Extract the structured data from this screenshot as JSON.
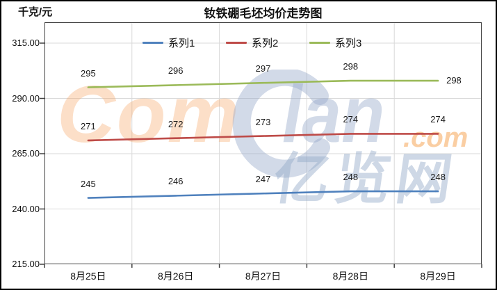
{
  "chart_data": {
    "type": "line",
    "title": "钕铁硼毛坯均价走势图",
    "ylabel": "千克/元",
    "categories": [
      "8月25日",
      "8月26日",
      "8月27日",
      "8月28日",
      "8月29日"
    ],
    "series": [
      {
        "name": "系列1",
        "color": "#4F81BD",
        "values": [
          245,
          246,
          247,
          248,
          248
        ],
        "last_label": "above"
      },
      {
        "name": "系列2",
        "color": "#BE4B48",
        "values": [
          271,
          272,
          273,
          274,
          274
        ],
        "last_label": "above"
      },
      {
        "name": "系列3",
        "color": "#9BBA59",
        "values": [
          295,
          296,
          297,
          298,
          298
        ],
        "last_label": "right"
      }
    ],
    "ylim": [
      215,
      315
    ],
    "ytick_values": [
      215,
      240,
      265,
      290,
      315
    ],
    "ytick_labels": [
      "215.00",
      "240.00",
      "265.00",
      "290.00",
      "315.00"
    ],
    "grid": true,
    "legend_position": "top-inside",
    "gridline_color": "#D9D9D9",
    "axis_color": "#404040"
  },
  "watermark": {
    "part_com": "Com",
    "part_lan": "lan",
    "part_dotcom": ".com",
    "part_cn": "亿览网",
    "color_orange": "#F6A667",
    "color_blue": "#93A8C7"
  }
}
